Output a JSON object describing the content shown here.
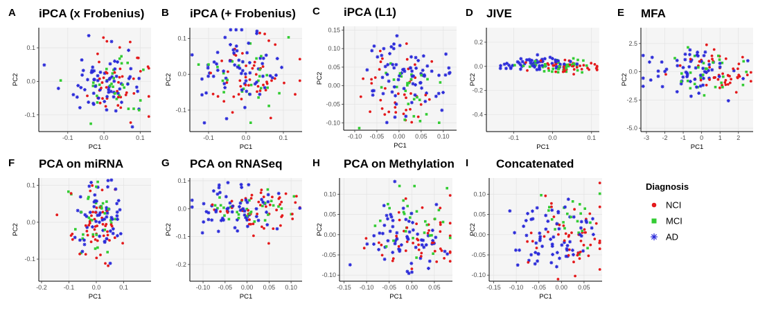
{
  "legend": {
    "title": "Diagnosis",
    "entries": [
      {
        "label": "NCI",
        "color": "#e41a1c",
        "shape": "circle"
      },
      {
        "label": "MCI",
        "color": "#33cc33",
        "shape": "square"
      },
      {
        "label": "AD",
        "color": "#2b2bd9",
        "shape": "asterisk"
      }
    ]
  },
  "chart_data": [
    {
      "type": "scatter",
      "letter": "A",
      "title": "iPCA (x Frobenius)",
      "xlabel": "PC1",
      "ylabel": "PC2",
      "xticks": [
        -0.1,
        0.0,
        0.1
      ],
      "xtick_labels": [
        "-0.1",
        "0.0",
        "0.1"
      ],
      "yticks": [
        -0.1,
        0.0,
        0.1
      ],
      "ytick_labels": [
        "-0.1",
        "0.0",
        "0.1"
      ],
      "xlim": [
        -0.18,
        0.13
      ],
      "ylim": [
        -0.15,
        0.16
      ],
      "center": {
        "NCI": [
          0.04,
          0.0
        ],
        "MCI": [
          0.02,
          0.0
        ],
        "AD": [
          -0.01,
          0.0
        ]
      },
      "spread": [
        0.055,
        0.055
      ],
      "n": 140,
      "seed": 11
    },
    {
      "type": "scatter",
      "letter": "B",
      "title": "iPCA (+ Frobenius)",
      "xlabel": "PC1",
      "ylabel": "PC2",
      "xticks": [
        -0.1,
        0.0,
        0.1
      ],
      "xtick_labels": [
        "-0.1",
        "0.0",
        "0.1"
      ],
      "yticks": [
        -0.1,
        0.0,
        0.1
      ],
      "ytick_labels": [
        "-0.1",
        "0.0",
        "0.1"
      ],
      "xlim": [
        -0.15,
        0.15
      ],
      "ylim": [
        -0.16,
        0.13
      ],
      "center": {
        "NCI": [
          0.02,
          -0.01
        ],
        "MCI": [
          0.01,
          0.0
        ],
        "AD": [
          -0.02,
          0.01
        ]
      },
      "spread": [
        0.055,
        0.05
      ],
      "n": 140,
      "seed": 23
    },
    {
      "type": "scatter",
      "letter": "C",
      "title": "iPCA (L1)",
      "xlabel": "PC1",
      "ylabel": "PC2",
      "xticks": [
        -0.1,
        -0.05,
        0.0,
        0.05,
        0.1
      ],
      "xtick_labels": [
        "-0.10",
        "-0.05",
        "0.00",
        "0.05",
        "0.10"
      ],
      "yticks": [
        -0.1,
        -0.05,
        0.0,
        0.05,
        0.1,
        0.15
      ],
      "ytick_labels": [
        "-0.10",
        "-0.05",
        "0.00",
        "0.05",
        "0.10",
        "0.15"
      ],
      "xlim": [
        -0.125,
        0.13
      ],
      "ylim": [
        -0.12,
        0.16
      ],
      "center": {
        "NCI": [
          -0.01,
          -0.01
        ],
        "MCI": [
          0.0,
          0.0
        ],
        "AD": [
          0.01,
          0.02
        ]
      },
      "spread": [
        0.05,
        0.05
      ],
      "n": 140,
      "seed": 37
    },
    {
      "type": "scatter",
      "letter": "D",
      "title": "JIVE",
      "xlabel": "PC1",
      "ylabel": "PC2",
      "xticks": [
        -0.1,
        0.0,
        0.1
      ],
      "xtick_labels": [
        "-0.1",
        "0.0",
        "0.1"
      ],
      "yticks": [
        -0.4,
        -0.2,
        0.0,
        0.2
      ],
      "ytick_labels": [
        "-0.4",
        "-0.2",
        "0.0",
        "0.2"
      ],
      "xlim": [
        -0.17,
        0.12
      ],
      "ylim": [
        -0.54,
        0.32
      ],
      "center": {
        "NCI": [
          0.04,
          0.0
        ],
        "MCI": [
          0.01,
          0.0
        ],
        "AD": [
          -0.05,
          0.02
        ]
      },
      "spread": [
        0.045,
        0.025
      ],
      "n": 140,
      "seed": 41
    },
    {
      "type": "scatter",
      "letter": "E",
      "title": "MFA",
      "xlabel": "PC1",
      "ylabel": "PC2",
      "xticks": [
        -3,
        -2,
        -1,
        0,
        1,
        2
      ],
      "xtick_labels": [
        "-3",
        "-2",
        "-1",
        "0",
        "1",
        "2"
      ],
      "yticks": [
        -5.0,
        -2.5,
        0.0,
        2.5
      ],
      "ytick_labels": [
        "-5.0",
        "-2.5",
        "0.0",
        "2.5"
      ],
      "xlim": [
        -3.3,
        2.8
      ],
      "ylim": [
        -5.3,
        3.9
      ],
      "center": {
        "NCI": [
          0.6,
          0.0
        ],
        "MCI": [
          0.2,
          0.0
        ],
        "AD": [
          -0.5,
          0.0
        ]
      },
      "spread": [
        1.1,
        1.1
      ],
      "n": 140,
      "seed": 53
    },
    {
      "type": "scatter",
      "letter": "F",
      "title": "PCA on miRNA",
      "xlabel": "PC1",
      "ylabel": "PC2",
      "xticks": [
        -0.2,
        -0.1,
        0.0,
        0.1
      ],
      "xtick_labels": [
        "-0.2",
        "-0.1",
        "0.0",
        "0.1"
      ],
      "yticks": [
        -0.1,
        0.0,
        0.1
      ],
      "ytick_labels": [
        "-0.1",
        "0.0",
        "0.1"
      ],
      "xlim": [
        -0.21,
        0.2
      ],
      "ylim": [
        -0.16,
        0.12
      ],
      "center": {
        "NCI": [
          0.0,
          -0.01
        ],
        "MCI": [
          0.0,
          0.0
        ],
        "AD": [
          0.0,
          0.01
        ]
      },
      "spread": [
        0.045,
        0.05
      ],
      "n": 140,
      "seed": 67
    },
    {
      "type": "scatter",
      "letter": "G",
      "title": "PCA on RNASeq",
      "xlabel": "PC1",
      "ylabel": "PC2",
      "xticks": [
        -0.1,
        -0.05,
        0.0,
        0.05,
        0.1
      ],
      "xtick_labels": [
        "-0.10",
        "-0.05",
        "0.00",
        "0.05",
        "0.10"
      ],
      "yticks": [
        -0.2,
        -0.1,
        0.0,
        0.1
      ],
      "ytick_labels": [
        "-0.2",
        "-0.1",
        "0.0",
        "0.1"
      ],
      "xlim": [
        -0.13,
        0.125
      ],
      "ylim": [
        -0.26,
        0.11
      ],
      "center": {
        "NCI": [
          0.02,
          0.0
        ],
        "MCI": [
          0.01,
          0.0
        ],
        "AD": [
          -0.02,
          0.0
        ]
      },
      "spread": [
        0.05,
        0.04
      ],
      "n": 140,
      "seed": 79
    },
    {
      "type": "scatter",
      "letter": "H",
      "title": "PCA on Methylation",
      "xlabel": "PC1",
      "ylabel": "PC2",
      "xticks": [
        -0.15,
        -0.1,
        -0.05,
        0.0,
        0.05
      ],
      "xtick_labels": [
        "-0.15",
        "-0.10",
        "-0.05",
        "0.00",
        "0.05"
      ],
      "yticks": [
        -0.1,
        -0.05,
        0.0,
        0.05,
        0.1
      ],
      "ytick_labels": [
        "-0.10",
        "-0.05",
        "0.00",
        "0.05",
        "0.10"
      ],
      "xlim": [
        -0.16,
        0.09
      ],
      "ylim": [
        -0.115,
        0.14
      ],
      "center": {
        "NCI": [
          0.02,
          -0.01
        ],
        "MCI": [
          0.0,
          0.03
        ],
        "AD": [
          -0.02,
          -0.01
        ]
      },
      "spread": [
        0.045,
        0.045
      ],
      "n": 140,
      "seed": 83
    },
    {
      "type": "scatter",
      "letter": "I",
      "title": "Concatenated",
      "xlabel": "PC1",
      "ylabel": "PC2",
      "xticks": [
        -0.15,
        -0.1,
        -0.05,
        0.0,
        0.05
      ],
      "xtick_labels": [
        "-0.15",
        "-0.10",
        "-0.05",
        "0.00",
        "0.05"
      ],
      "yticks": [
        -0.1,
        -0.05,
        0.0,
        0.05,
        0.1
      ],
      "ytick_labels": [
        "-0.10",
        "-0.05",
        "0.00",
        "0.05",
        "0.10"
      ],
      "xlim": [
        -0.16,
        0.09
      ],
      "ylim": [
        -0.115,
        0.14
      ],
      "center": {
        "NCI": [
          0.02,
          -0.01
        ],
        "MCI": [
          0.0,
          0.03
        ],
        "AD": [
          -0.02,
          -0.01
        ]
      },
      "spread": [
        0.045,
        0.045
      ],
      "n": 140,
      "seed": 97
    }
  ]
}
